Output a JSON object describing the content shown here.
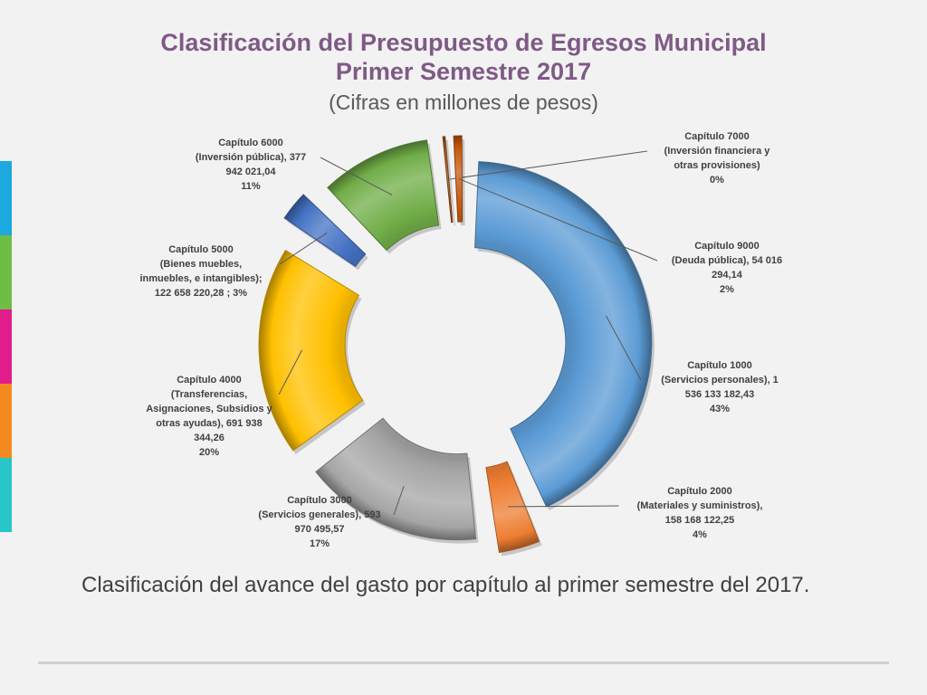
{
  "title_line1": "Clasificación del Presupuesto de Egresos Municipal",
  "title_line2": "Primer Semestre 2017",
  "subtitle": "(Cifras en millones de pesos)",
  "caption": "Clasificación del avance del gasto por capítulo al primer semestre del 2017.",
  "side_strip_colors": [
    "#1ba9df",
    "#6dbd46",
    "#e31c8c",
    "#f4891f",
    "#29c6c9"
  ],
  "chart_data": {
    "type": "pie",
    "variant": "exploded donut",
    "slices": [
      {
        "name": "Capítulo 1000",
        "label_lines": [
          "Capítulo 1000",
          "(Servicios personales),  1",
          "536 133 182,43",
          "43%"
        ],
        "value": 1536133182.43,
        "percent": 43,
        "color": "#5b9bd5"
      },
      {
        "name": "Capítulo 2000",
        "label_lines": [
          "Capítulo 2000",
          "(Materiales y suministros),",
          "158 168 122,25",
          "4%"
        ],
        "value": 158168122.25,
        "percent": 4,
        "color": "#ed7d31"
      },
      {
        "name": "Capítulo 3000",
        "label_lines": [
          "Capítulo 3000",
          "(Servicios generales),  593",
          "970 495,57",
          "17%"
        ],
        "value": 593970495.57,
        "percent": 17,
        "color": "#a5a5a5"
      },
      {
        "name": "Capítulo 4000",
        "label_lines": [
          "Capítulo 4000",
          "(Transferencias,",
          "Asignaciones, Subsidios y",
          "otras ayudas),  691 938",
          "344,26",
          "20%"
        ],
        "value": 691938344.26,
        "percent": 20,
        "color": "#ffc000"
      },
      {
        "name": "Capítulo 5000",
        "label_lines": [
          "Capítulo 5000",
          "(Bienes muebles,",
          "inmuebles, e intangibles);",
          "122 658 220,28 ; 3%"
        ],
        "value": 122658220.28,
        "percent": 3,
        "color": "#4472c4"
      },
      {
        "name": "Capítulo 6000",
        "label_lines": [
          "Capítulo 6000",
          "(Inversión pública),  377",
          "942 021,04",
          "11%"
        ],
        "value": 377942021.04,
        "percent": 11,
        "color": "#70ad47"
      },
      {
        "name": "Capítulo 7000",
        "label_lines": [
          "Capítulo 7000",
          "(Inversión financiera y",
          "otras provisiones)",
          "0%"
        ],
        "value": 0,
        "percent": 0,
        "color": "#a9561e"
      },
      {
        "name": "Capítulo 9000",
        "label_lines": [
          "Capítulo 9000",
          "(Deuda pública),  54 016",
          "294,14",
          "2%"
        ],
        "value": 54016294.14,
        "percent": 2,
        "color": "#c55a11"
      }
    ],
    "legend": "none"
  }
}
